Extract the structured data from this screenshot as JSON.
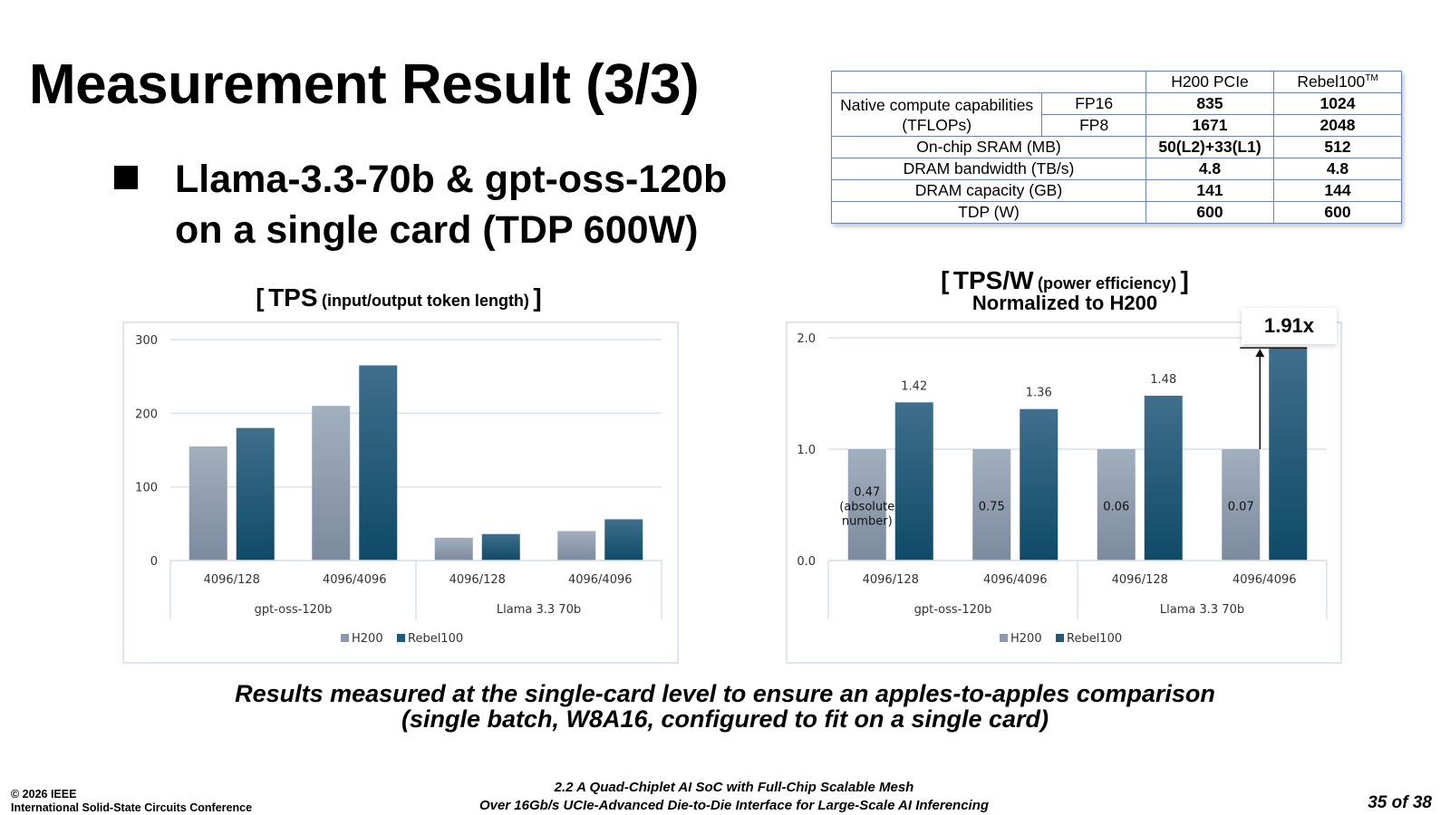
{
  "slide": {
    "title": "Measurement Result (3/3)",
    "bullet_line1": "Llama-3.3-70b & gpt-oss-120b",
    "bullet_line2": "on a single card (TDP 600W)",
    "footnote_line1": "Results measured at the single-card level to ensure an apples-to-apples comparison",
    "footnote_line2": "(single batch, W8A16, configured to fit on a single card)",
    "footer_copyright": "© 2026 IEEE",
    "footer_conference": "International Solid-State Circuits Conference",
    "footer_paper_line1": "2.2 A Quad-Chiplet AI SoC with Full-Chip Scalable Mesh",
    "footer_paper_line2": "Over 16Gb/s UCIe-Advanced Die-to-Die Interface for Large-Scale AI Inferencing",
    "page_number": "35 of 38"
  },
  "spec_table": {
    "col1": "H200 PCIe",
    "col2": "Rebel100",
    "col2_sup": "TM",
    "compute_label_1": "Native compute capabilities",
    "compute_label_2": "(TFLOPs)",
    "rows": [
      {
        "label": "FP16",
        "h200": "835",
        "rebel": "1024"
      },
      {
        "label": "FP8",
        "h200": "1671",
        "rebel": "2048"
      },
      {
        "label": "On-chip SRAM (MB)",
        "h200": "50(L2)+33(L1)",
        "rebel": "512"
      },
      {
        "label": "DRAM bandwidth (TB/s)",
        "h200": "4.8",
        "rebel": "4.8"
      },
      {
        "label": "DRAM capacity (GB)",
        "h200": "141",
        "rebel": "144"
      },
      {
        "label": "TDP (W)",
        "h200": "600",
        "rebel": "600"
      }
    ]
  },
  "chart1_heading": {
    "bracket_open": "[",
    "main": "TPS",
    "sub": "(input/output token length)",
    "bracket_close": "]"
  },
  "chart2_heading": {
    "bracket_open": "[",
    "main": "TPS/W",
    "sub": "(power efficiency)",
    "bracket_close": "]",
    "line2": "Normalized to H200"
  },
  "callout": {
    "text": "1.91x"
  },
  "colors": {
    "h200": "#8c9aab",
    "rebel": "#1f5a78",
    "grid": "#d7e3ef",
    "frame": "#dbe6f0"
  },
  "chart_data": [
    {
      "type": "bar",
      "title": "[ TPS (input/output token length) ]",
      "categories": [
        "4096/128",
        "4096/4096",
        "4096/128",
        "4096/4096"
      ],
      "groups": [
        "gpt-oss-120b",
        "Llama 3.3 70b"
      ],
      "series": [
        {
          "name": "H200",
          "values": [
            155,
            210,
            31,
            40
          ]
        },
        {
          "name": "Rebel100",
          "values": [
            180,
            265,
            36,
            56
          ]
        }
      ],
      "ylim": [
        0,
        300
      ],
      "yticks": [
        "0",
        "100",
        "200",
        "300"
      ],
      "grid": true,
      "legend": "bottom"
    },
    {
      "type": "bar",
      "title": "[ TPS/W (power efficiency) ] Normalized to H200",
      "categories": [
        "4096/128",
        "4096/4096",
        "4096/128",
        "4096/4096"
      ],
      "groups": [
        "gpt-oss-120b",
        "Llama 3.3 70b"
      ],
      "series": [
        {
          "name": "H200",
          "values": [
            1.0,
            1.0,
            1.0,
            1.0
          ]
        },
        {
          "name": "Rebel100",
          "values": [
            1.42,
            1.36,
            1.48,
            1.91
          ]
        }
      ],
      "data_labels": [
        "1.42",
        "1.36",
        "1.48"
      ],
      "annotations": [
        "0.47\n(absolute\nnumber)",
        "0.75",
        "0.06",
        "0.07"
      ],
      "ylim": [
        0,
        2.0
      ],
      "yticks": [
        "0.0",
        "1.0",
        "2.0"
      ],
      "grid": true,
      "legend": "bottom"
    }
  ]
}
